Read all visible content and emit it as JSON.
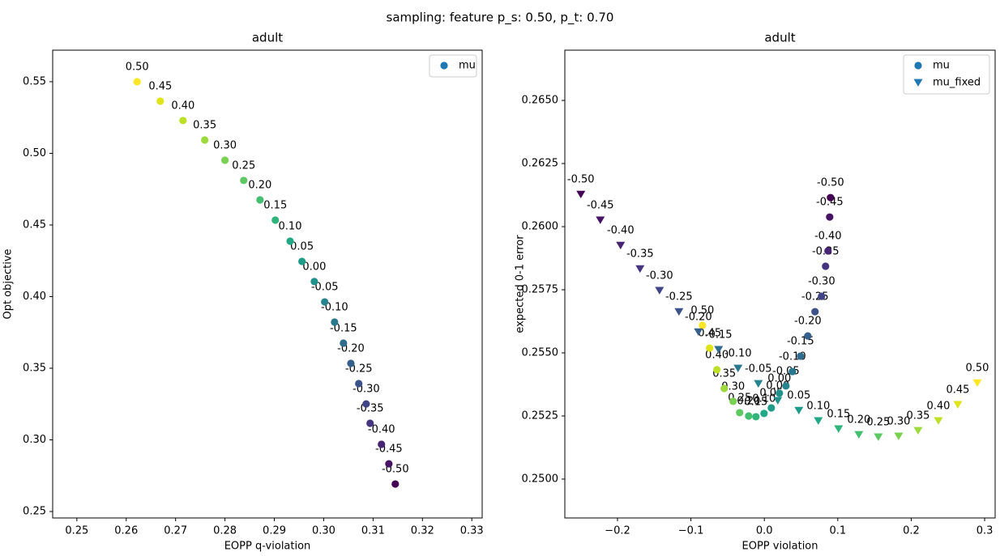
{
  "suptitle": "sampling: feature p_s: 0.50, p_t: 0.70",
  "chart_data": [
    {
      "type": "scatter",
      "title": "adult",
      "x_label": "EOPP q-violation",
      "y_label": "Opt objective",
      "xlim": [
        0.2451,
        0.3321
      ],
      "ylim": [
        0.2455,
        0.572
      ],
      "xticks": [
        0.25,
        0.26,
        0.27,
        0.28,
        0.29,
        {
          "value": 0.3,
          "label": "0.30"
        },
        0.31,
        0.32,
        0.33
      ],
      "yticks": [
        0.25,
        {
          "value": 0.3,
          "label": "0.30"
        },
        0.35,
        {
          "value": 0.4,
          "label": "0.40"
        },
        0.45,
        {
          "value": 0.5,
          "label": "0.50"
        },
        0.55
      ],
      "legend": "upper right",
      "series": [
        {
          "name": "mu",
          "marker": "o",
          "color": "#1f77b4",
          "x": [
            0.2622,
            0.2669,
            0.2715,
            0.2759,
            0.28,
            0.2838,
            0.2871,
            0.2902,
            0.2932,
            0.2956,
            0.2981,
            0.3002,
            0.3022,
            0.304,
            0.3055,
            0.3071,
            0.3086,
            0.3094,
            0.3117,
            0.3132,
            0.3145
          ],
          "y": [
            0.55,
            0.5364,
            0.5229,
            0.5093,
            0.4952,
            0.4811,
            0.4675,
            0.4534,
            0.4387,
            0.4246,
            0.4105,
            0.3963,
            0.3822,
            0.3675,
            0.3534,
            0.3393,
            0.3251,
            0.3116,
            0.2969,
            0.2833,
            0.2692
          ],
          "point_labels": [
            "0.50",
            "0.45",
            "0.40",
            "0.35",
            "0.30",
            "0.25",
            "0.20",
            "0.15",
            "0.10",
            "0.05",
            "0.00",
            "-0.05",
            "-0.10",
            "-0.15",
            "-0.20",
            "-0.25",
            "-0.30",
            "-0.35",
            "-0.40",
            "-0.45",
            "-0.50"
          ],
          "colors": [
            "#fde725",
            "#dfe318",
            "#bddf26",
            "#9bd93c",
            "#7ad151",
            "#5ec962",
            "#44bf70",
            "#2fb47c",
            "#22a884",
            "#1e9c89",
            "#21918c",
            "#25848e",
            "#2a788e",
            "#2f6c8e",
            "#355f8d",
            "#3b528b",
            "#414487",
            "#463480",
            "#482475",
            "#471365",
            "#440154"
          ]
        }
      ]
    },
    {
      "type": "scatter",
      "title": "adult",
      "x_label": "EOPP violation",
      "y_label": "expected 0-1 error",
      "xlim": [
        -0.2717,
        0.3143
      ],
      "ylim": [
        0.24846,
        0.26699
      ],
      "xticks": [
        {
          "value": -0.2,
          "label": "−0.2"
        },
        {
          "value": -0.1,
          "label": "−0.1"
        },
        {
          "value": 0,
          "label": "0.0"
        },
        0.1,
        0.2,
        0.3
      ],
      "yticks": [
        {
          "value": 0.25,
          "label": "0.2500"
        },
        {
          "value": 0.2525,
          "label": "0.2525"
        },
        {
          "value": 0.255,
          "label": "0.2550"
        },
        {
          "value": 0.2575,
          "label": "0.2575"
        },
        {
          "value": 0.26,
          "label": "0.2600"
        },
        {
          "value": 0.2625,
          "label": "0.2625"
        },
        {
          "value": 0.265,
          "label": "0.2650"
        }
      ],
      "legend": "upper right",
      "series": [
        {
          "name": "mu",
          "marker": "o",
          "color": "#1f77b4",
          "x": [
            -0.0843,
            -0.0745,
            -0.0646,
            -0.0546,
            -0.0425,
            -0.0336,
            -0.0214,
            -0.0115,
            -0.0004,
            0.0095,
            0.0205,
            0.0294,
            0.0382,
            0.0492,
            0.0592,
            0.069,
            0.0779,
            0.0834,
            0.0867,
            0.089,
            0.0901
          ],
          "y": [
            0.25609,
            0.25519,
            0.25433,
            0.25359,
            0.25308,
            0.25263,
            0.2525,
            0.25247,
            0.2526,
            0.25282,
            0.2534,
            0.25369,
            0.25426,
            0.25487,
            0.25567,
            0.25663,
            0.25724,
            0.25843,
            0.25904,
            0.26038,
            0.26115
          ],
          "point_labels": [
            "0.50",
            "0.45",
            "0.40",
            "0.35",
            "0.30",
            "0.25",
            "0.20",
            "0.15",
            "0.10",
            "0.05",
            "0.00",
            "-0.05",
            "-0.10",
            "-0.15",
            "-0.20",
            "-0.25",
            "-0.30",
            "-0.35",
            "-0.40",
            "-0.45",
            "-0.50"
          ],
          "colors": [
            "#fde725",
            "#dfe318",
            "#bddf26",
            "#9bd93c",
            "#7ad151",
            "#5ec962",
            "#44bf70",
            "#2fb47c",
            "#22a884",
            "#1e9c89",
            "#21918c",
            "#25848e",
            "#2a788e",
            "#2f6c8e",
            "#355f8d",
            "#3b528b",
            "#414487",
            "#463480",
            "#482475",
            "#471365",
            "#440154"
          ]
        },
        {
          "name": "mu_fixed",
          "marker": "v",
          "color": "#1f77b4",
          "x": [
            0.29,
            0.2635,
            0.237,
            0.2094,
            0.1829,
            0.1552,
            0.1287,
            0.1011,
            0.0735,
            0.047,
            0.0183,
            -0.0082,
            -0.0358,
            -0.0623,
            -0.0898,
            -0.1163,
            -0.1428,
            -0.1693,
            -0.1958,
            -0.2234,
            -0.2499
          ],
          "y": [
            0.25381,
            0.25295,
            0.25231,
            0.25192,
            0.2517,
            0.25167,
            0.25176,
            0.25199,
            0.25231,
            0.25272,
            0.25311,
            0.25378,
            0.25439,
            0.25513,
            0.25583,
            0.25663,
            0.25747,
            0.25833,
            0.25926,
            0.26026,
            0.26128
          ],
          "point_labels": [
            "0.50",
            "0.45",
            "0.40",
            "0.35",
            "0.30",
            "0.25",
            "0.20",
            "0.15",
            "0.10",
            "0.05",
            "0.00",
            "-0.05",
            "-0.10",
            "-0.15",
            "-0.20",
            "-0.25",
            "-0.30",
            "-0.35",
            "-0.40",
            "-0.45",
            "-0.50"
          ],
          "colors": [
            "#fde725",
            "#dfe318",
            "#bddf26",
            "#9bd93c",
            "#7ad151",
            "#5ec962",
            "#44bf70",
            "#2fb47c",
            "#22a884",
            "#1e9c89",
            "#21918c",
            "#25848e",
            "#2a788e",
            "#2f6c8e",
            "#355f8d",
            "#3b528b",
            "#414487",
            "#463480",
            "#482475",
            "#471365",
            "#440154"
          ]
        }
      ]
    }
  ]
}
